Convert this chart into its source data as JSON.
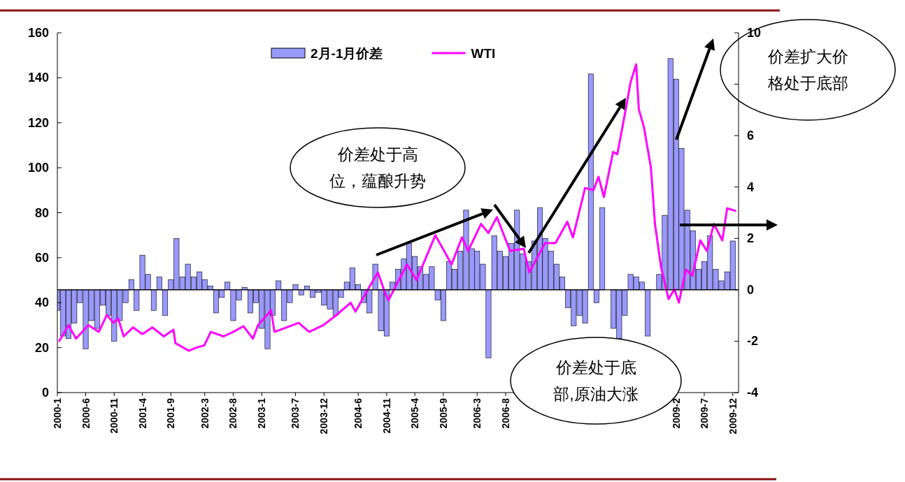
{
  "chart_data": {
    "type": "line",
    "legend": "top",
    "xlim": [
      "2000-01",
      "2010-01"
    ],
    "xticks": [
      {
        "value": "2000-01",
        "label": "2000-1"
      },
      {
        "value": "2000-06",
        "label": "2000-6"
      },
      {
        "value": "2000-11",
        "label": "2000-11"
      },
      {
        "value": "2001-04",
        "label": "2001-4"
      },
      {
        "value": "2001-09",
        "label": "2001-9"
      },
      {
        "value": "2002-03",
        "label": "2002-3"
      },
      {
        "value": "2002-08",
        "label": "2002-8"
      },
      {
        "value": "2003-01",
        "label": "2003-1"
      },
      {
        "value": "2003-07",
        "label": "2003-7"
      },
      {
        "value": "2003-12",
        "label": "2003-12"
      },
      {
        "value": "2004-06",
        "label": "2004-6"
      },
      {
        "value": "2004-11",
        "label": "2004-11"
      },
      {
        "value": "2005-04",
        "label": "2005-4"
      },
      {
        "value": "2005-09",
        "label": "2005-9"
      },
      {
        "value": "2006-03",
        "label": "2006-3"
      },
      {
        "value": "2006-08",
        "label": "2006-8"
      },
      {
        "value": "2007-01",
        "label": null
      },
      {
        "value": "2007-06",
        "label": null
      },
      {
        "value": "2007-11",
        "label": null
      },
      {
        "value": "2008-04",
        "label": null
      },
      {
        "value": "2008-09",
        "label": null
      },
      {
        "value": "2009-02",
        "label": "2009-2"
      },
      {
        "value": "2009-07",
        "label": "2009-7"
      },
      {
        "value": "2009-12",
        "label": "2009-12"
      }
    ],
    "ylim": [
      0,
      160
    ],
    "yticks": [
      0,
      20,
      40,
      60,
      80,
      100,
      120,
      140,
      160
    ],
    "y2lim": [
      -4,
      10
    ],
    "y2ticks": [
      -4,
      -2,
      0,
      2,
      4,
      6,
      {
        "value": 8,
        "label": null
      },
      10
    ],
    "annotations": [
      "价差处于高位，蕴酿升势",
      "价差处于底部,原油大涨",
      "价差扩大价格处于底部"
    ],
    "series": [
      {
        "name": "2月-1月价差",
        "type": "bar",
        "axis": "y2",
        "color": "#9999ff",
        "x": [
          "2000-01",
          "2000-02",
          "2000-03",
          "2000-04",
          "2000-05",
          "2000-06",
          "2000-07",
          "2000-08",
          "2000-09",
          "2000-10",
          "2000-11",
          "2000-12",
          "2001-01",
          "2001-02",
          "2001-03",
          "2001-04",
          "2001-05",
          "2001-06",
          "2001-07",
          "2001-08",
          "2001-09",
          "2001-10",
          "2001-11",
          "2001-12",
          "2002-01",
          "2002-02",
          "2002-03",
          "2002-04",
          "2002-05",
          "2002-06",
          "2002-07",
          "2002-08",
          "2002-09",
          "2002-10",
          "2002-11",
          "2002-12",
          "2003-01",
          "2003-02",
          "2003-03",
          "2003-04",
          "2003-05",
          "2003-06",
          "2003-07",
          "2003-08",
          "2003-09",
          "2003-10",
          "2003-11",
          "2003-12",
          "2004-01",
          "2004-02",
          "2004-03",
          "2004-04",
          "2004-05",
          "2004-06",
          "2004-07",
          "2004-08",
          "2004-09",
          "2004-10",
          "2004-11",
          "2004-12",
          "2005-01",
          "2005-02",
          "2005-03",
          "2005-04",
          "2005-05",
          "2005-06",
          "2005-07",
          "2005-08",
          "2005-09",
          "2005-10",
          "2005-11",
          "2005-12",
          "2006-01",
          "2006-02",
          "2006-03",
          "2006-04",
          "2006-05",
          "2006-06",
          "2006-07",
          "2006-08",
          "2006-09",
          "2006-10",
          "2006-11",
          "2006-12",
          "2007-01",
          "2007-02",
          "2007-03",
          "2007-04",
          "2007-05",
          "2007-06",
          "2007-07",
          "2007-08",
          "2007-09",
          "2007-10",
          "2007-11",
          "2007-12",
          "2008-01",
          "2008-02",
          "2008-03",
          "2008-04",
          "2008-05",
          "2008-06",
          "2008-07",
          "2008-08",
          "2008-09",
          "2008-10",
          "2008-11",
          "2008-12",
          "2009-01",
          "2009-02",
          "2009-03",
          "2009-04",
          "2009-05",
          "2009-06",
          "2009-07",
          "2009-08",
          "2009-09",
          "2009-10",
          "2009-11",
          "2009-12"
        ],
        "values": [
          -0.8,
          -1.8,
          -1.9,
          -1.3,
          -0.5,
          -2.3,
          -1.2,
          -1.5,
          -0.6,
          -1.0,
          -2.0,
          -1.2,
          -0.5,
          0.4,
          -0.8,
          1.35,
          0.6,
          -0.8,
          0.5,
          -1.0,
          0.4,
          2.0,
          0.5,
          1.0,
          0.5,
          0.7,
          0.4,
          0.15,
          -0.9,
          -0.3,
          0.3,
          -1.2,
          -0.4,
          0.1,
          -0.9,
          -0.5,
          -1.5,
          -2.3,
          -1.0,
          0.35,
          -1.2,
          -0.5,
          0.2,
          -0.2,
          0.15,
          -0.3,
          -0.1,
          -0.6,
          -0.75,
          -1.0,
          -0.3,
          0.3,
          0.85,
          0.2,
          -0.5,
          -0.9,
          1.0,
          -1.6,
          -1.8,
          0.3,
          0.8,
          1.2,
          1.8,
          1.3,
          0.9,
          0.6,
          0.9,
          -0.4,
          -1.2,
          1.1,
          0.8,
          1.5,
          3.1,
          1.6,
          1.5,
          1.0,
          -2.65,
          2.1,
          1.5,
          1.3,
          1.8,
          3.1,
          1.4,
          1.1,
          1.9,
          3.2,
          2.0,
          1.5,
          1.0,
          0.5,
          -0.7,
          -1.4,
          -1.0,
          -1.3,
          8.4,
          -0.5,
          3.2,
          0.0,
          -1.5,
          -1.9,
          -1.0,
          0.6,
          0.5,
          0.3,
          -1.8,
          0.0,
          0.6,
          2.9,
          9.0,
          8.2,
          5.5,
          3.1,
          2.3,
          0.8,
          1.1,
          2.1,
          0.8,
          0.35,
          0.7,
          1.9
        ]
      },
      {
        "name": "WTI",
        "color": "#ff00ff",
        "x": [
          "2000-01-12",
          "2000-03-01",
          "2000-04-10",
          "2000-06-15",
          "2000-08-10",
          "2000-09-22",
          "2000-10-28",
          "2000-11-22",
          "2000-12-22",
          "2001-02-10",
          "2001-04-01",
          "2001-05-25",
          "2001-07-25",
          "2001-09-15",
          "2001-09-25",
          "2001-12-06",
          "2002-01-15",
          "2002-02-27",
          "2002-04-03",
          "2002-06-10",
          "2002-08-01",
          "2002-09-25",
          "2002-11-15",
          "2002-12-12",
          "2003-02-20",
          "2003-03-10",
          "2003-05-15",
          "2003-07-18",
          "2003-09-12",
          "2003-11-28",
          "2004-02-06",
          "2004-04-22",
          "2004-05-18",
          "2004-07-10",
          "2004-09-15",
          "2004-10-25",
          "2004-11-10",
          "2005-02-18",
          "2005-04-10",
          "2005-07-20",
          "2005-10-15",
          "2005-12-10",
          "2006-01-12",
          "2006-03-22",
          "2006-05-01",
          "2006-06-15",
          "2006-08-25",
          "2006-11-06",
          "2006-12-06",
          "2007-03-01",
          "2007-04-25",
          "2007-06-28",
          "2007-07-28",
          "2007-10-01",
          "2007-11-15",
          "2007-12-12",
          "2008-01-10",
          "2008-02-28",
          "2008-03-22",
          "2008-05-06",
          "2008-06-01",
          "2008-07-01",
          "2008-07-15",
          "2008-08-12",
          "2008-09-18",
          "2008-10-10",
          "2008-11-12",
          "2008-12-22",
          "2009-01-22",
          "2009-02-15",
          "2009-03-25",
          "2009-04-28",
          "2009-06-10",
          "2009-07-15",
          "2009-08-22",
          "2009-10-06",
          "2009-11-01",
          "2009-12-15"
        ],
        "values": [
          23,
          30,
          24,
          30,
          27,
          34.5,
          31,
          33,
          25,
          29,
          26,
          29,
          25,
          28,
          22,
          18.6,
          20,
          21,
          27,
          25,
          27,
          29.5,
          24,
          30,
          36.6,
          27,
          29,
          31,
          27,
          30,
          34.5,
          40,
          36,
          44,
          53.5,
          44,
          41,
          57,
          50,
          70,
          57,
          69,
          63,
          75,
          71,
          78,
          63,
          64,
          53.5,
          66.5,
          66.5,
          76,
          69,
          91,
          90,
          96,
          87,
          107,
          106,
          126,
          138,
          146,
          126,
          118,
          100,
          75,
          55.6,
          41.6,
          46,
          40,
          54.7,
          52,
          67.7,
          63,
          75,
          67.7,
          82,
          80.8
        ]
      }
    ]
  }
}
